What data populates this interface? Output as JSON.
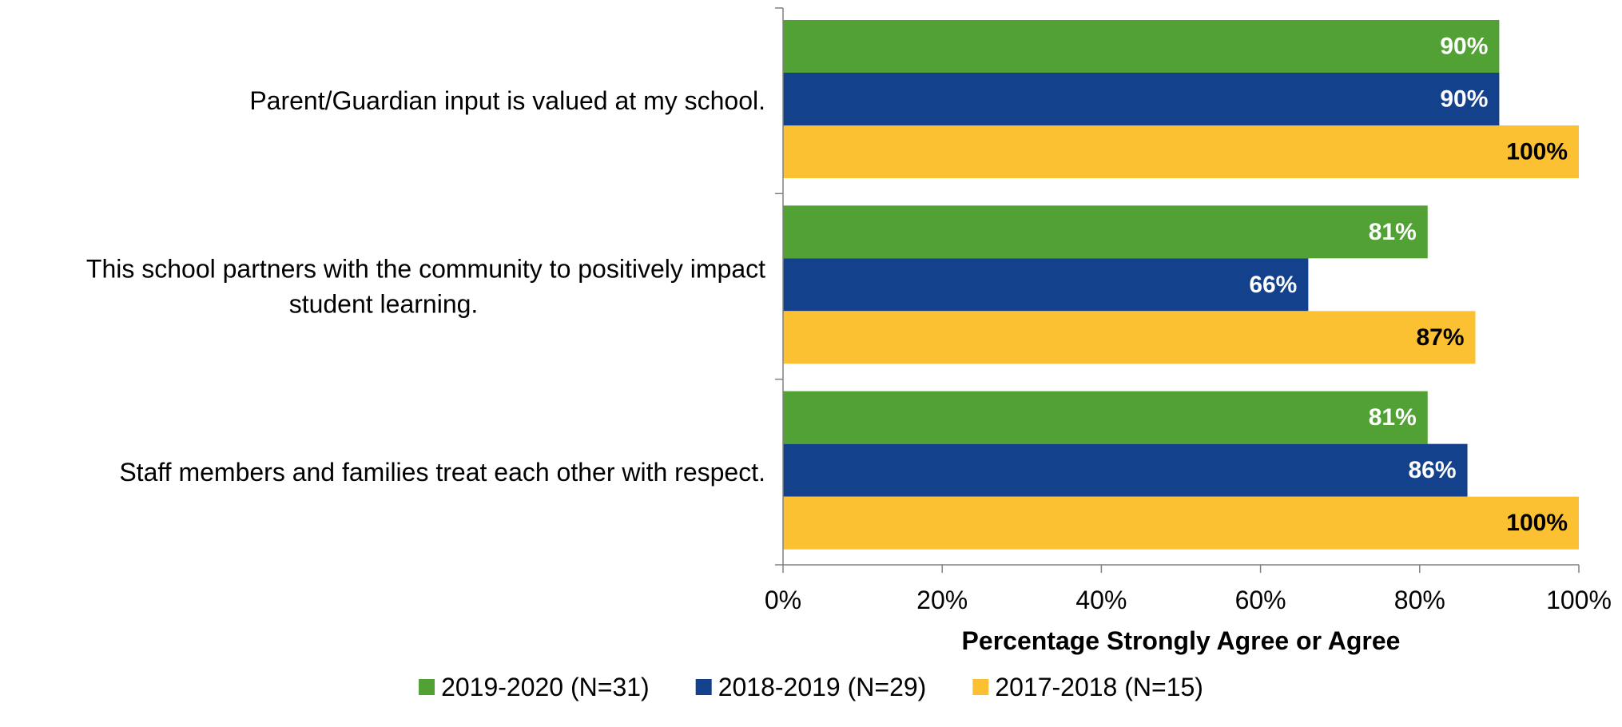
{
  "chart_data": {
    "type": "bar",
    "orientation": "horizontal",
    "categories": [
      [
        "Parent/Guardian input is valued at my school."
      ],
      [
        "This school partners with the community to positively impact",
        "student learning."
      ],
      [
        "Staff members and families treat each other with respect."
      ]
    ],
    "series": [
      {
        "name": "2019-2020 (N=31)",
        "values": [
          90,
          81,
          81
        ],
        "labels": [
          "90%",
          "81%",
          "81%"
        ],
        "color": "#52a135",
        "label_color": "#ffffff"
      },
      {
        "name": "2018-2019 (N=29)",
        "values": [
          90,
          66,
          86
        ],
        "labels": [
          "90%",
          "66%",
          "86%"
        ],
        "color": "#14418b",
        "label_color": "#ffffff"
      },
      {
        "name": "2017-2018 (N=15)",
        "values": [
          100,
          87,
          100
        ],
        "labels": [
          "100%",
          "87%",
          "100%"
        ],
        "color": "#fcc133",
        "label_color": "#000000"
      }
    ],
    "xlim": [
      0,
      100
    ],
    "xticks": [
      0,
      20,
      40,
      60,
      80,
      100
    ],
    "xtick_labels": [
      "0%",
      "20%",
      "40%",
      "60%",
      "80%",
      "100%"
    ],
    "xlabel": "Percentage Strongly Agree or Agree",
    "grid": false,
    "legend_position": "bottom"
  }
}
